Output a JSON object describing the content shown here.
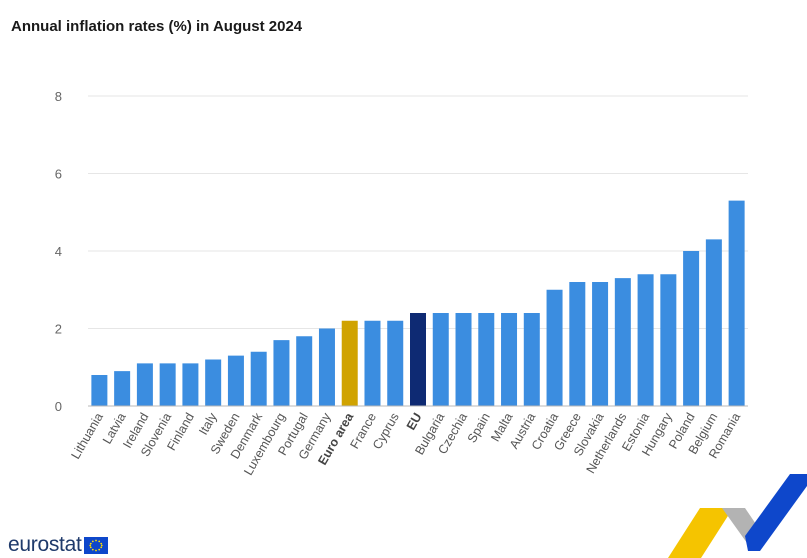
{
  "page": {
    "title": "Annual inflation rates (%) in August 2024",
    "logo_text": "eurostat"
  },
  "colors": {
    "default": "#3b8de0",
    "euro_area": "#d0a300",
    "eu": "#0e2a73",
    "grid": "#e6e6e6",
    "axis_text": "#666666",
    "label_text": "#555555",
    "bold_label_text": "#444444"
  },
  "chart_data": {
    "type": "bar",
    "title": "Annual inflation rates (%) in August 2024",
    "xlabel": "",
    "ylabel": "",
    "ylim": [
      0,
      8
    ],
    "yticks": [
      0,
      2,
      4,
      6,
      8
    ],
    "grid": true,
    "categories": [
      "Lithuania",
      "Latvia",
      "Ireland",
      "Slovenia",
      "Finland",
      "Italy",
      "Sweden",
      "Denmark",
      "Luxembourg",
      "Portugal",
      "Germany",
      "Euro area",
      "France",
      "Cyprus",
      "EU",
      "Bulgaria",
      "Czechia",
      "Spain",
      "Malta",
      "Austria",
      "Croatia",
      "Greece",
      "Slovakia",
      "Netherlands",
      "Estonia",
      "Hungary",
      "Poland",
      "Belgium",
      "Romania"
    ],
    "values": [
      0.8,
      0.9,
      1.1,
      1.1,
      1.1,
      1.2,
      1.3,
      1.4,
      1.7,
      1.8,
      2.0,
      2.2,
      2.2,
      2.2,
      2.4,
      2.4,
      2.4,
      2.4,
      2.4,
      2.4,
      3.0,
      3.2,
      3.2,
      3.3,
      3.4,
      3.4,
      4.0,
      4.3,
      5.3
    ],
    "highlight": {
      "Euro area": "euro_area",
      "EU": "eu"
    },
    "bold_categories": [
      "Euro area",
      "EU"
    ]
  }
}
